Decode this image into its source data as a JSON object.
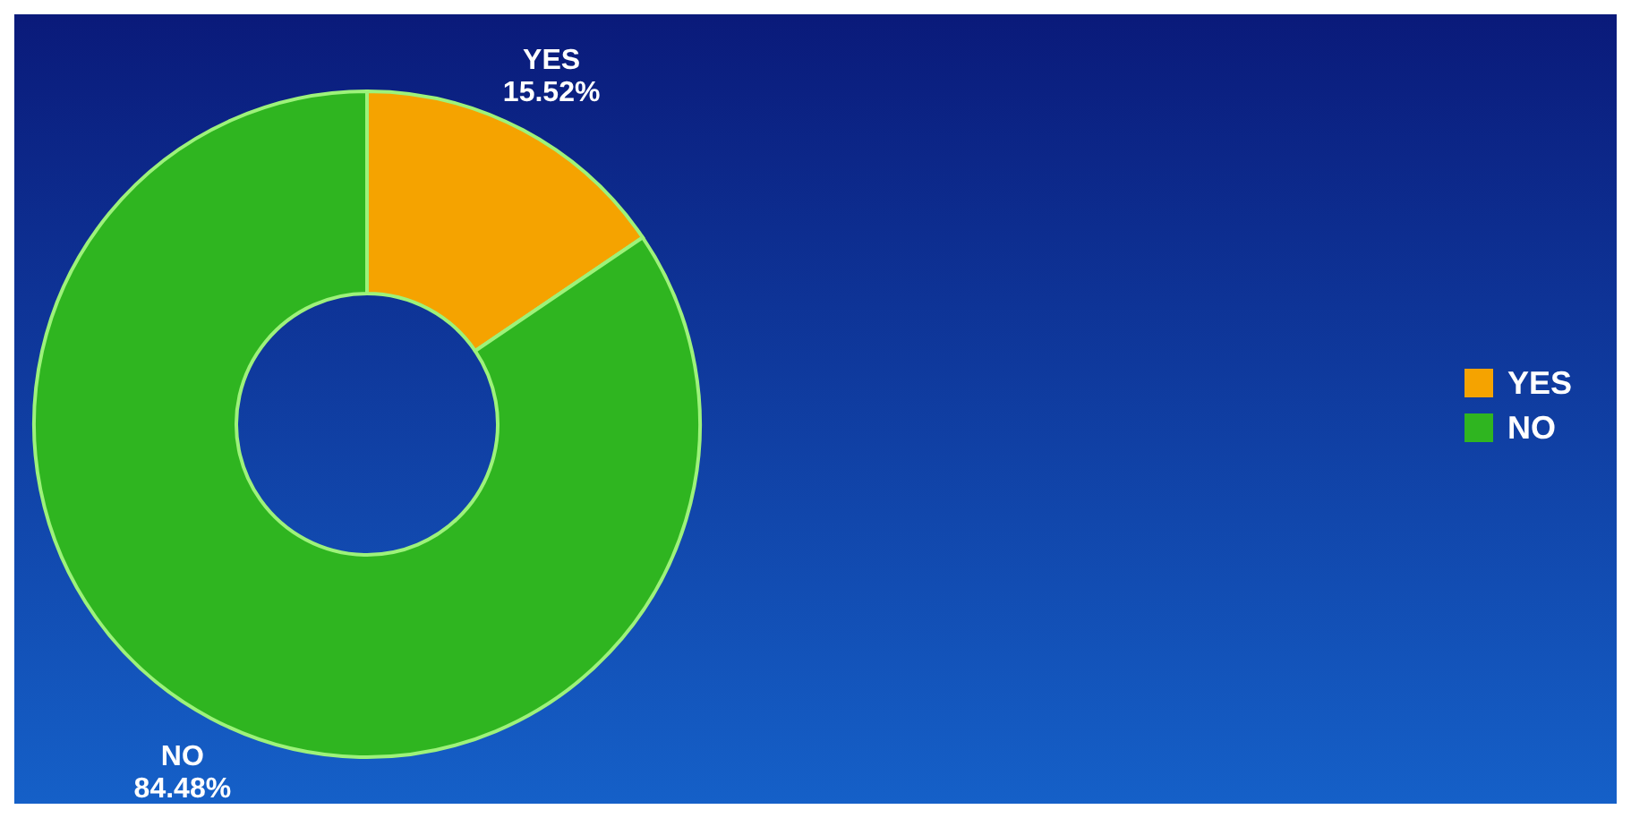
{
  "chart_data": {
    "type": "donut",
    "categories": [
      "YES",
      "NO"
    ],
    "values": [
      15.52,
      84.48
    ],
    "colors": [
      "#f5a300",
      "#2fb520"
    ],
    "value_labels": [
      "15.52%",
      "84.48%"
    ],
    "legend": "right"
  }
}
